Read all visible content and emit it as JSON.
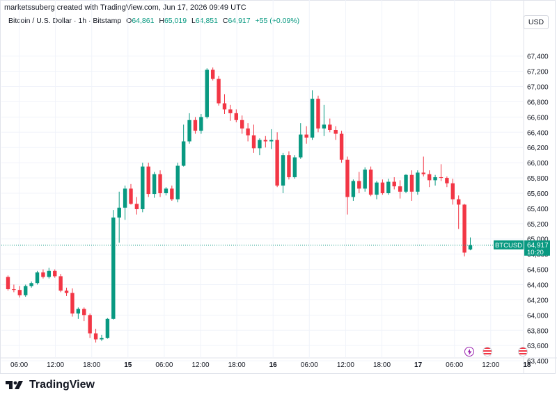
{
  "header": {
    "created_by": "marketssuberg created with TradingView.com, Jun 17, 2026 09:49 UTC",
    "symbol": "Bitcoin / U.S. Dollar · 1h · Bitstamp",
    "open_label": "O",
    "open": "64,861",
    "high_label": "H",
    "high": "65,019",
    "low_label": "L",
    "low": "64,851",
    "close_label": "C",
    "close": "64,917",
    "change": "+55 (+0.09%)",
    "currency": "USD"
  },
  "price_tag": {
    "symbol": "BTCUSD",
    "price": "64,917",
    "countdown": "10:20"
  },
  "footer": {
    "brand": "TradingView"
  },
  "colors": {
    "up": "#089981",
    "down": "#f23645",
    "grid": "#f0f3fa",
    "text": "#131722"
  },
  "chart_data": {
    "type": "candlestick",
    "title": "Bitcoin / U.S. Dollar · 1h · Bitstamp",
    "ylim": [
      63300,
      67500
    ],
    "y_ticks": [
      "67,400",
      "67,200",
      "67,000",
      "66,800",
      "66,600",
      "66,400",
      "66,200",
      "66,000",
      "65,800",
      "65,600",
      "65,400",
      "65,200",
      "65,000",
      "64,800",
      "64,600",
      "64,400",
      "64,200",
      "64,000",
      "63,800",
      "63,600",
      "63,400"
    ],
    "x_ticks": [
      "06:00",
      "12:00",
      "18:00",
      "15",
      "06:00",
      "12:00",
      "18:00",
      "16",
      "06:00",
      "12:00",
      "18:00",
      "17",
      "06:00",
      "12:00",
      "18"
    ],
    "grid": true,
    "current_price": 64917,
    "ohlc": [
      [
        64500,
        64520,
        64320,
        64340
      ],
      [
        64340,
        64400,
        64300,
        64330
      ],
      [
        64330,
        64380,
        64230,
        64260
      ],
      [
        64260,
        64400,
        64240,
        64380
      ],
      [
        64380,
        64440,
        64360,
        64420
      ],
      [
        64420,
        64580,
        64400,
        64560
      ],
      [
        64560,
        64600,
        64480,
        64500
      ],
      [
        64500,
        64620,
        64480,
        64580
      ],
      [
        64580,
        64600,
        64490,
        64510
      ],
      [
        64510,
        64540,
        64300,
        64320
      ],
      [
        64320,
        64360,
        64250,
        64290
      ],
      [
        64290,
        64350,
        63980,
        64020
      ],
      [
        64020,
        64100,
        63950,
        64080
      ],
      [
        64080,
        64100,
        63920,
        64000
      ],
      [
        64000,
        64020,
        63700,
        63760
      ],
      [
        63760,
        63820,
        63640,
        63680
      ],
      [
        63680,
        63740,
        63660,
        63700
      ],
      [
        63700,
        63960,
        63690,
        63950
      ],
      [
        63950,
        65380,
        63940,
        65280
      ],
      [
        65280,
        65620,
        64950,
        65410
      ],
      [
        65410,
        65700,
        65250,
        65660
      ],
      [
        65660,
        65720,
        65450,
        65460
      ],
      [
        65460,
        65550,
        65320,
        65390
      ],
      [
        65390,
        66000,
        65350,
        65950
      ],
      [
        65950,
        66000,
        65550,
        65590
      ],
      [
        65590,
        65880,
        65540,
        65850
      ],
      [
        65850,
        65900,
        65550,
        65600
      ],
      [
        65600,
        65680,
        65570,
        65660
      ],
      [
        65660,
        65700,
        65500,
        65520
      ],
      [
        65520,
        66000,
        65480,
        65960
      ],
      [
        65960,
        66500,
        65950,
        66280
      ],
      [
        66280,
        66650,
        66250,
        66560
      ],
      [
        66560,
        66600,
        66380,
        66420
      ],
      [
        66420,
        66640,
        66380,
        66600
      ],
      [
        66600,
        67240,
        66580,
        67220
      ],
      [
        67220,
        67250,
        67080,
        67100
      ],
      [
        67100,
        67140,
        66750,
        66780
      ],
      [
        66780,
        66900,
        66640,
        66700
      ],
      [
        66700,
        66760,
        66550,
        66650
      ],
      [
        66650,
        66700,
        66530,
        66560
      ],
      [
        66560,
        66620,
        66380,
        66450
      ],
      [
        66450,
        66520,
        66280,
        66360
      ],
      [
        66360,
        66500,
        66130,
        66190
      ],
      [
        66190,
        66320,
        66100,
        66300
      ],
      [
        66300,
        66350,
        66200,
        66280
      ],
      [
        66280,
        66440,
        66180,
        66300
      ],
      [
        66300,
        66400,
        65680,
        65700
      ],
      [
        65700,
        66130,
        65600,
        66100
      ],
      [
        66100,
        66150,
        65780,
        65810
      ],
      [
        65810,
        66100,
        65790,
        66070
      ],
      [
        66070,
        66520,
        66050,
        66370
      ],
      [
        66370,
        66480,
        66250,
        66330
      ],
      [
        66330,
        66950,
        66300,
        66840
      ],
      [
        66840,
        66880,
        66400,
        66450
      ],
      [
        66450,
        66760,
        66350,
        66500
      ],
      [
        66500,
        66580,
        66400,
        66430
      ],
      [
        66430,
        66480,
        66300,
        66380
      ],
      [
        66380,
        66420,
        66000,
        66040
      ],
      [
        66040,
        66080,
        65320,
        65550
      ],
      [
        65550,
        65780,
        65500,
        65760
      ],
      [
        65760,
        65880,
        65600,
        65660
      ],
      [
        65660,
        65940,
        65620,
        65910
      ],
      [
        65910,
        65950,
        65560,
        65580
      ],
      [
        65580,
        65760,
        65520,
        65740
      ],
      [
        65740,
        65780,
        65580,
        65600
      ],
      [
        65600,
        65790,
        65580,
        65750
      ],
      [
        65750,
        65810,
        65650,
        65690
      ],
      [
        65690,
        65770,
        65530,
        65620
      ],
      [
        65620,
        65850,
        65600,
        65840
      ],
      [
        65840,
        65900,
        65500,
        65620
      ],
      [
        65620,
        65900,
        65580,
        65870
      ],
      [
        65870,
        66080,
        65820,
        65850
      ],
      [
        65850,
        65900,
        65680,
        65770
      ],
      [
        65770,
        65840,
        65700,
        65810
      ],
      [
        65810,
        65980,
        65760,
        65800
      ],
      [
        65800,
        65820,
        65680,
        65730
      ],
      [
        65730,
        65790,
        65450,
        65520
      ],
      [
        65520,
        65570,
        65130,
        65450
      ],
      [
        65450,
        65460,
        64770,
        64820
      ],
      [
        64861,
        65019,
        64851,
        64917
      ]
    ]
  }
}
